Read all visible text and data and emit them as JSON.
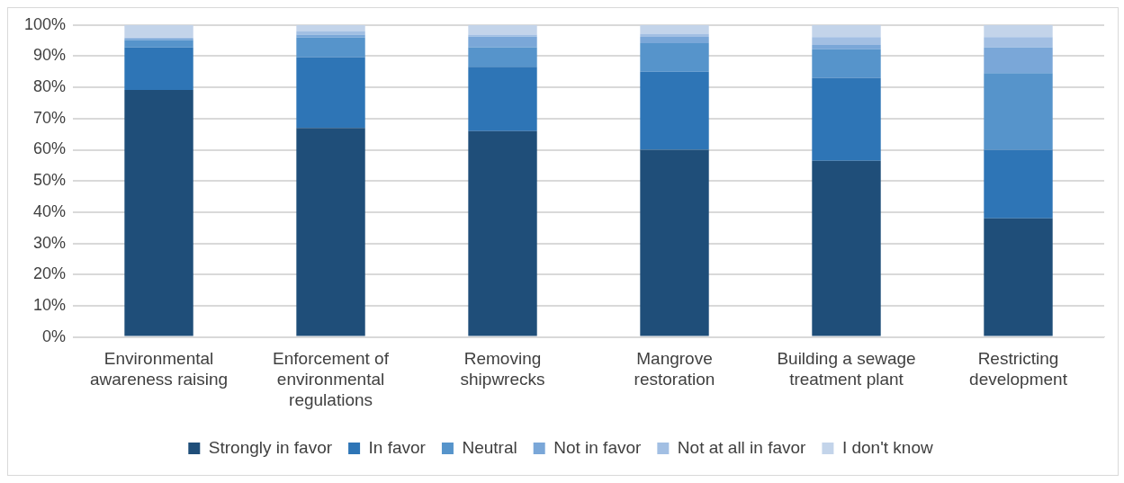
{
  "chart_data": {
    "type": "bar",
    "stacked": true,
    "categories": [
      "Environmental awareness raising",
      "Enforcement of environmental regulations",
      "Removing shipwrecks",
      "Mangrove restoration",
      "Building a sewage treatment plant",
      "Restricting development"
    ],
    "series": [
      {
        "name": "Strongly in favor",
        "color": "#1f4e79",
        "values": [
          79.2,
          67,
          66,
          60,
          56.5,
          38
        ]
      },
      {
        "name": "In favor",
        "color": "#2e75b6",
        "values": [
          13.6,
          22.7,
          20.6,
          25,
          26.6,
          22
        ]
      },
      {
        "name": "Neutral",
        "color": "#5694cb",
        "values": [
          2.4,
          6.3,
          6.3,
          9.2,
          9.1,
          24.6
        ]
      },
      {
        "name": "Not in favor",
        "color": "#7aa7d8",
        "values": [
          0.4,
          0.9,
          3.4,
          2,
          1.4,
          8.2
        ]
      },
      {
        "name": "Not at all in favor",
        "color": "#a2bfe3",
        "values": [
          0.4,
          1.2,
          0.6,
          1,
          2.5,
          3.3
        ]
      },
      {
        "name": "I don't know",
        "color": "#c3d4ea",
        "values": [
          4,
          1.9,
          3.1,
          2.8,
          3.9,
          3.9
        ]
      }
    ],
    "ylim": [
      0,
      100
    ],
    "yticks": [
      {
        "value": 0,
        "label": "0%"
      },
      {
        "value": 10,
        "label": "10%"
      },
      {
        "value": 20,
        "label": "20%"
      },
      {
        "value": 30,
        "label": "30%"
      },
      {
        "value": 40,
        "label": "40%"
      },
      {
        "value": 50,
        "label": "50%"
      },
      {
        "value": 60,
        "label": "60%"
      },
      {
        "value": 70,
        "label": "70%"
      },
      {
        "value": 80,
        "label": "80%"
      },
      {
        "value": 90,
        "label": "90%"
      },
      {
        "value": 100,
        "label": "100%"
      }
    ],
    "grid": "y",
    "legend": "bottom"
  }
}
